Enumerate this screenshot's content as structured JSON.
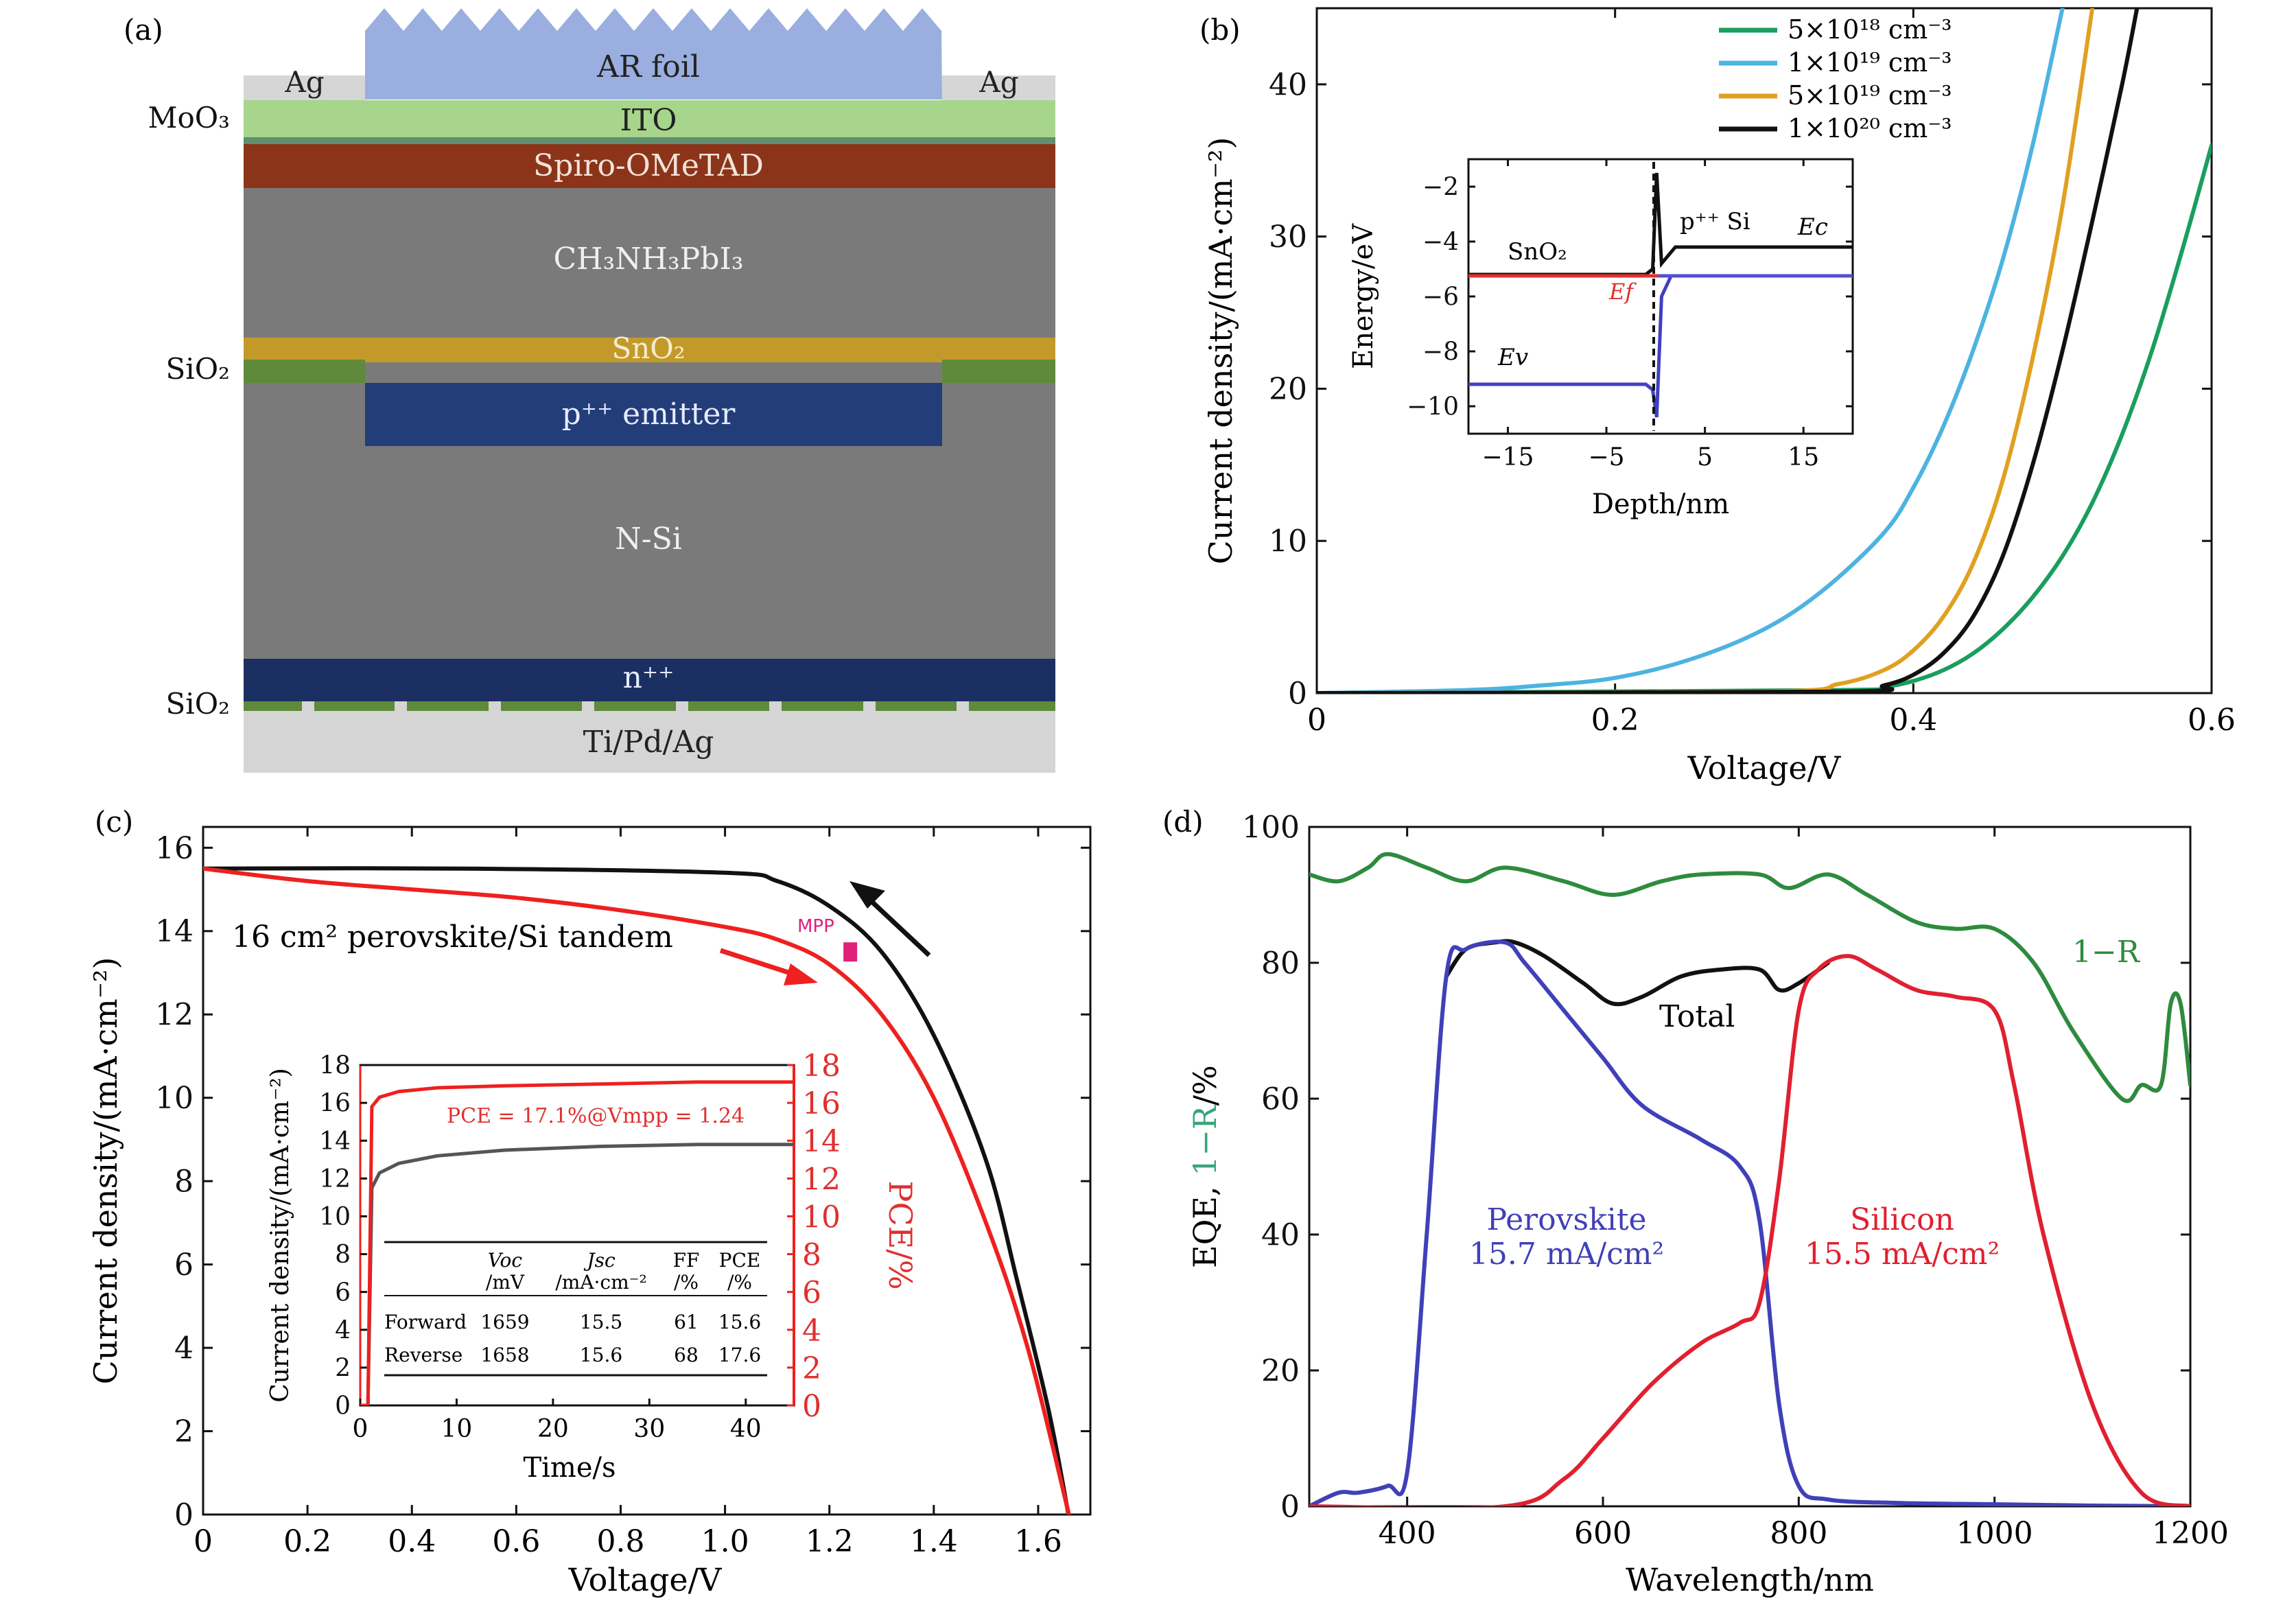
{
  "panels": {
    "a": {
      "tag": "(a)",
      "layers": {
        "ar_foil": "AR foil",
        "ag_left": "Ag",
        "ag_right": "Ag",
        "moo3": "MoO₃",
        "ito": "ITO",
        "spiro": "Spiro-OMeTAD",
        "perovskite": "CH₃NH₃PbI₃",
        "sio2_top": "SiO₂",
        "sno2": "SnO₂",
        "emitter": "p⁺⁺ emitter",
        "nsi": "N-Si",
        "sio2_bottom": "SiO₂",
        "npp": "n⁺⁺",
        "metal": "Ti/Pd/Ag"
      },
      "colors": {
        "ar_foil": "#9aaee0",
        "ag": "#d6d6d6",
        "ito": "#a7d58c",
        "moo3": "#5f8f6f",
        "spiro": "#8c3419",
        "perovskite": "#7a7a7a",
        "sno2": "#c39a2a",
        "sio2": "#5e8a3a",
        "emitter": "#233d78",
        "npp": "#1c2f63",
        "metal": "#d5d5d5"
      }
    },
    "b": {
      "tag": "(b)",
      "xlabel": "Voltage/V",
      "ylabel": "Current density/(mA·cm⁻²)",
      "x_ticks": [
        "0",
        "0.2",
        "0.4",
        "0.6"
      ],
      "y_ticks": [
        "0",
        "10",
        "20",
        "30",
        "40"
      ],
      "inset": {
        "xlabel": "Depth/nm",
        "ylabel": "Energy/eV",
        "x_ticks": [
          "−15",
          "−5",
          "5",
          "15"
        ],
        "y_ticks": [
          "−2",
          "−4",
          "−6",
          "−8",
          "−10"
        ],
        "labels": {
          "sno2": "SnO₂",
          "psi": "p⁺⁺ Si",
          "ec": "Ec",
          "ef": "Ef",
          "ev": "Ev"
        }
      }
    },
    "c": {
      "tag": "(c)",
      "xlabel": "Voltage/V",
      "ylabel": "Current density/(mA·cm⁻²)",
      "x_ticks": [
        "0",
        "0.2",
        "0.4",
        "0.6",
        "0.8",
        "1.0",
        "1.2",
        "1.4",
        "1.6"
      ],
      "y_ticks": [
        "0",
        "2",
        "4",
        "6",
        "8",
        "10",
        "12",
        "14",
        "16"
      ],
      "annotation": "16 cm² perovskite/Si tandem",
      "mpp": "MPP",
      "inset": {
        "xlabel": "Time/s",
        "ylabel": "Current density/(mA·cm⁻²)",
        "ylabel_right": "PCE/%",
        "pce_text": "PCE = 17.1%@Vmpp = 1.24",
        "x_ticks": [
          "0",
          "10",
          "20",
          "30",
          "40"
        ],
        "y_ticks": [
          "0",
          "2",
          "4",
          "6",
          "8",
          "10",
          "12",
          "14",
          "16",
          "18"
        ],
        "table": {
          "headers": [
            [
              "",
              ""
            ],
            [
              "Voc",
              "/mV"
            ],
            [
              "Jsc",
              "/mA·cm⁻²"
            ],
            [
              "FF",
              "/%"
            ],
            [
              "PCE",
              "/%"
            ]
          ],
          "rows": [
            [
              "Forward",
              "1659",
              "15.5",
              "61",
              "15.6"
            ],
            [
              "Reverse",
              "1658",
              "15.6",
              "68",
              "17.6"
            ]
          ]
        }
      }
    },
    "d": {
      "tag": "(d)",
      "xlabel": "Wavelength/nm",
      "ylabel_a": "EQE, ",
      "ylabel_b": "1−R",
      "ylabel_c": "/%",
      "x_ticks": [
        "400",
        "600",
        "800",
        "1000",
        "1200"
      ],
      "y_ticks": [
        "0",
        "20",
        "40",
        "60",
        "80",
        "100"
      ],
      "labels": {
        "one_minus_r": "1−R",
        "total": "Total",
        "perovskite": "Perovskite",
        "perovskite_jsc": "15.7 mA/cm²",
        "silicon": "Silicon",
        "silicon_jsc": "15.5 mA/cm²"
      }
    }
  },
  "chart_data": [
    {
      "panel": "b",
      "type": "line",
      "xlim": [
        0,
        0.6
      ],
      "ylim": [
        0,
        45
      ],
      "legend_position": "top-right",
      "series": [
        {
          "name": "5×10¹⁸ cm⁻³",
          "color": "#1a9e5f",
          "x": [
            0,
            0.35,
            0.38,
            0.4,
            0.42,
            0.44,
            0.46,
            0.48,
            0.5,
            0.52,
            0.54,
            0.56,
            0.58,
            0.6
          ],
          "y": [
            0,
            0.2,
            0.4,
            0.8,
            1.5,
            2.6,
            4.2,
            6.3,
            9.0,
            12.5,
            17.0,
            22.5,
            29.0,
            36.0
          ]
        },
        {
          "name": "1×10¹⁹ cm⁻³",
          "color": "#4db3e0",
          "x": [
            0,
            0.1,
            0.15,
            0.2,
            0.25,
            0.3,
            0.34,
            0.38,
            0.4,
            0.42,
            0.44,
            0.46,
            0.48,
            0.5
          ],
          "y": [
            0,
            0.2,
            0.5,
            1.0,
            2.2,
            4.2,
            6.8,
            10.5,
            13.5,
            17.5,
            22.5,
            28.5,
            36.0,
            45.0
          ]
        },
        {
          "name": "5×10¹⁹ cm⁻³",
          "color": "#e0a020",
          "x": [
            0,
            0.3,
            0.35,
            0.38,
            0.4,
            0.42,
            0.44,
            0.46,
            0.48,
            0.5,
            0.52
          ],
          "y": [
            0,
            0.1,
            0.6,
            1.5,
            2.8,
            5.0,
            8.5,
            14.0,
            22.0,
            32.0,
            45.0
          ]
        },
        {
          "name": "1×10²⁰ cm⁻³",
          "color": "#111111",
          "x": [
            0,
            0.35,
            0.38,
            0.4,
            0.42,
            0.44,
            0.46,
            0.48,
            0.5,
            0.52,
            0.54,
            0.55
          ],
          "y": [
            0,
            0.1,
            0.5,
            1.2,
            2.6,
            5.0,
            9.0,
            15.0,
            22.5,
            31.0,
            40.0,
            45.0
          ]
        }
      ],
      "inset": {
        "type": "line",
        "xlim": [
          -19,
          20
        ],
        "ylim": [
          -11,
          -1
        ],
        "series": [
          {
            "name": "Ec",
            "color": "#111111",
            "x": [
              -19,
              -1,
              -0.3,
              0.1,
              0.6,
              2,
              20
            ],
            "y": [
              -5.2,
              -5.2,
              -5.0,
              -1.5,
              -4.8,
              -4.2,
              -4.2
            ]
          },
          {
            "name": "Ef",
            "color": "#e03030",
            "x": [
              -19,
              0.3
            ],
            "y": [
              -5.25,
              -5.25
            ]
          },
          {
            "name": "Ef",
            "color": "#5050d0",
            "x": [
              0.3,
              20
            ],
            "y": [
              -5.25,
              -5.25
            ]
          },
          {
            "name": "Ev",
            "color": "#4040c0",
            "x": [
              -19,
              -1,
              -0.3,
              0.1,
              0.6,
              1.5
            ],
            "y": [
              -9.2,
              -9.2,
              -9.4,
              -10.4,
              -6.0,
              -5.3
            ]
          }
        ]
      }
    },
    {
      "panel": "c",
      "type": "line",
      "xlim": [
        0,
        1.7
      ],
      "ylim": [
        0,
        16.5
      ],
      "series": [
        {
          "color": "#111111",
          "x": [
            0,
            0.5,
            1.0,
            1.1,
            1.2,
            1.3,
            1.4,
            1.5,
            1.56,
            1.62,
            1.658
          ],
          "y": [
            15.5,
            15.5,
            15.4,
            15.2,
            14.6,
            13.5,
            11.5,
            8.5,
            5.6,
            2.5,
            0
          ]
        },
        {
          "color": "#ee2020",
          "x": [
            0,
            0.2,
            0.4,
            0.6,
            0.8,
            1.0,
            1.1,
            1.2,
            1.3,
            1.4,
            1.5,
            1.58,
            1.659
          ],
          "y": [
            15.5,
            15.2,
            15.0,
            14.8,
            14.5,
            14.1,
            13.8,
            13.2,
            12.0,
            10.0,
            7.0,
            4.0,
            0
          ]
        }
      ],
      "mpp_point": {
        "x": 1.24,
        "y": 13.5
      },
      "inset": {
        "type": "line",
        "xlim": [
          0,
          45
        ],
        "ylim": [
          0,
          18
        ],
        "series": [
          {
            "color": "#555555",
            "x": [
              0,
              0.8,
              1.2,
              2,
              4,
              8,
              15,
              25,
              35,
              45
            ],
            "y": [
              0,
              0,
              11.5,
              12.3,
              12.8,
              13.2,
              13.5,
              13.7,
              13.8,
              13.8
            ]
          },
          {
            "color": "#ee2020",
            "x": [
              0,
              0.8,
              1.2,
              2,
              4,
              8,
              15,
              25,
              35,
              45
            ],
            "y": [
              0,
              0,
              15.8,
              16.3,
              16.6,
              16.8,
              16.9,
              17.0,
              17.1,
              17.1
            ]
          }
        ]
      }
    },
    {
      "panel": "d",
      "type": "line",
      "xlim": [
        300,
        1200
      ],
      "ylim": [
        0,
        100
      ],
      "series": [
        {
          "name": "1−R",
          "color": "#2e8b3e",
          "x": [
            300,
            330,
            360,
            380,
            420,
            460,
            500,
            560,
            610,
            660,
            700,
            760,
            790,
            830,
            870,
            920,
            960,
            1000,
            1040,
            1080,
            1130,
            1150,
            1170,
            1180,
            1190,
            1200
          ],
          "y": [
            93,
            92,
            94,
            96,
            94,
            92,
            94,
            92,
            90,
            92,
            93,
            93,
            91,
            93,
            90,
            86,
            85,
            85,
            80,
            70,
            60,
            62,
            62,
            74,
            74,
            62
          ]
        },
        {
          "name": "Total",
          "color": "#111111",
          "x": [
            440,
            460,
            490,
            510,
            540,
            580,
            610,
            640,
            680,
            720,
            760,
            780,
            800,
            830
          ],
          "y": [
            78,
            82,
            83,
            83,
            81,
            77,
            74,
            75,
            78,
            79,
            79,
            76,
            77,
            80
          ]
        },
        {
          "name": "Perovskite",
          "color": "#4040b8",
          "x": [
            300,
            330,
            350,
            380,
            400,
            420,
            440,
            460,
            500,
            520,
            560,
            600,
            640,
            700,
            740,
            760,
            780,
            800,
            830,
            900,
            1000,
            1100,
            1200
          ],
          "y": [
            0,
            2,
            2,
            3,
            5,
            40,
            78,
            82,
            83,
            80,
            73,
            66,
            59,
            54,
            50,
            42,
            15,
            3,
            1,
            0.5,
            0.3,
            0.1,
            0
          ]
        },
        {
          "name": "Silicon",
          "color": "#e02030",
          "x": [
            300,
            500,
            560,
            600,
            650,
            700,
            740,
            760,
            780,
            800,
            820,
            850,
            880,
            920,
            960,
            1000,
            1020,
            1050,
            1100,
            1150,
            1200
          ],
          "y": [
            0,
            0,
            4,
            10,
            18,
            24,
            27,
            30,
            48,
            73,
            79,
            81,
            79,
            76,
            75,
            73,
            62,
            40,
            15,
            2,
            0
          ]
        }
      ]
    }
  ]
}
